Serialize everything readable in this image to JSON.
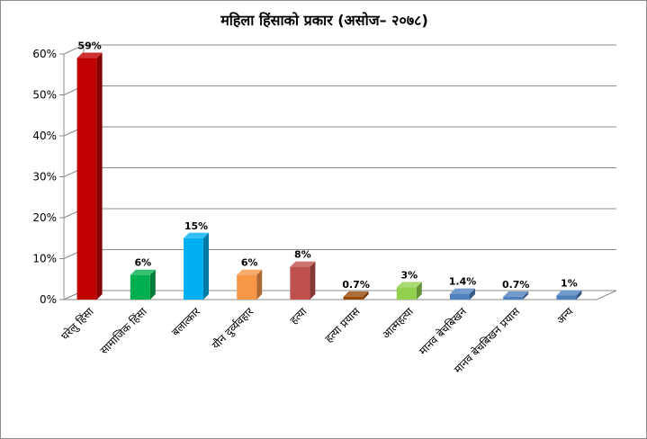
{
  "chart_data": {
    "type": "bar",
    "title": "महिला हिंसाको प्रकार  (असोज– २०७८)",
    "categories": [
      "घरेलु हिंसा",
      "सामाजिक हिंसा",
      "बलात्कार",
      "यौन दुर्व्यवहार",
      "हत्या",
      "हत्या प्रयास",
      "आत्महत्या",
      "मानव बेचबिखन",
      "मानव बेचबिखन प्रयास",
      "अन्य"
    ],
    "values": [
      59,
      6,
      15,
      6,
      8,
      0.7,
      3,
      1.4,
      0.7,
      1
    ],
    "data_labels": [
      "59%",
      "6%",
      "15%",
      "6%",
      "8%",
      "0.7%",
      "3%",
      "1.4%",
      "0.7%",
      "1%"
    ],
    "colors": [
      "#c00000",
      "#00b050",
      "#00b0f0",
      "#f79646",
      "#c0504d",
      "#984807",
      "#92d050",
      "#4f81bd",
      "#4f81bd",
      "#4f81bd"
    ],
    "y_ticks": [
      "0%",
      "10%",
      "20%",
      "30%",
      "40%",
      "50%",
      "60%"
    ],
    "ylim": [
      0,
      60
    ],
    "grid": true,
    "legend": "none",
    "xlabel": "",
    "ylabel": ""
  }
}
